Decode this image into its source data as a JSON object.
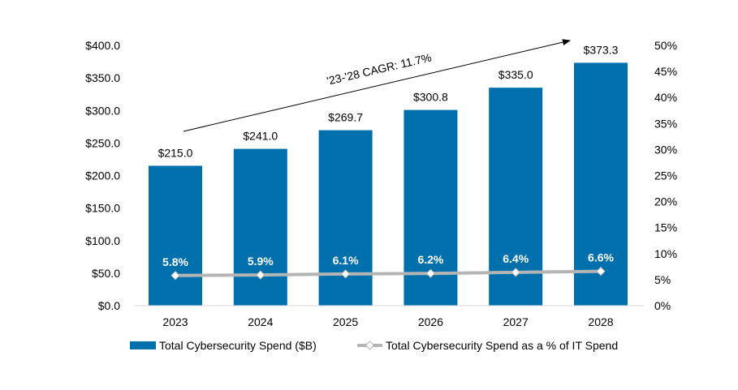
{
  "chart_data": {
    "type": "bar",
    "categories": [
      "2023",
      "2024",
      "2025",
      "2026",
      "2027",
      "2028"
    ],
    "series": [
      {
        "name": "Total Cybersecurity Spend ($B)",
        "type": "bar",
        "axis": "left",
        "values": [
          215.0,
          241.0,
          269.7,
          300.8,
          335.0,
          373.3
        ],
        "labels": [
          "$215.0",
          "$241.0",
          "$269.7",
          "$300.8",
          "$335.0",
          "$373.3"
        ],
        "color": "#0070AC"
      },
      {
        "name": "Total Cybersecurity Spend as a % of IT Spend",
        "type": "line",
        "axis": "right",
        "values": [
          5.8,
          5.9,
          6.1,
          6.2,
          6.4,
          6.6
        ],
        "labels": [
          "5.8%",
          "5.9%",
          "6.1%",
          "6.2%",
          "6.4%",
          "6.6%"
        ],
        "color": "#B4B4B4"
      }
    ],
    "y_left": {
      "ylim": [
        0,
        400
      ],
      "ticks": [
        "$0.0",
        "$50.0",
        "$100.0",
        "$150.0",
        "$200.0",
        "$250.0",
        "$300.0",
        "$350.0",
        "$400.0"
      ]
    },
    "y_right": {
      "ylim": [
        0,
        50
      ],
      "ticks": [
        "0%",
        "5%",
        "10%",
        "15%",
        "20%",
        "25%",
        "30%",
        "35%",
        "40%",
        "45%",
        "50%"
      ]
    },
    "annotation": "'23-'28 CAGR: 11.7%",
    "grid": false,
    "legend_position": "bottom"
  }
}
